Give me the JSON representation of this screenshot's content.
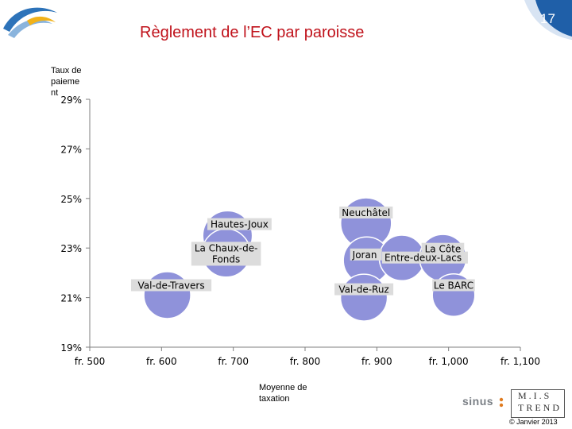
{
  "header": {
    "title": "Règlement de l’EC par paroisse",
    "page_number": "17"
  },
  "footer": {
    "brand": "sinus",
    "partner_logo_top": "M.I.S",
    "partner_logo_bottom": "TREND",
    "copyright": "© Janvier 2013"
  },
  "colors": {
    "title": "#c0121b",
    "bubble_fill": "#8f92da",
    "bubble_stroke": "#ffffff",
    "label_bg": "#dcdcdc",
    "axis": "#7f7f7f",
    "badge": "#1f5fa8"
  },
  "chart_data": {
    "type": "bubble",
    "title": "Règlement de l’EC par paroisse",
    "xlabel": "Moyenne de taxation",
    "ylabel": "Taux de paiement",
    "ylabel_lines": [
      "Taux de",
      "paieme",
      "nt"
    ],
    "xlim": [
      500,
      1100
    ],
    "ylim": [
      19,
      29
    ],
    "xticks": [
      500,
      600,
      700,
      800,
      900,
      1000,
      1100
    ],
    "xtick_labels": [
      "fr.  500",
      "fr.  600",
      "fr.  700",
      "fr.  800",
      "fr.  900",
      "fr.  1,000",
      "fr.  1,100"
    ],
    "yticks": [
      19,
      21,
      23,
      25,
      27,
      29
    ],
    "ytick_labels": [
      "19%",
      "21%",
      "23%",
      "25%",
      "27%",
      "29%"
    ],
    "grid": false,
    "series": [
      {
        "label": "Neuchâtel",
        "x": 885,
        "y": 24.0,
        "size": 1.0
      },
      {
        "label": "Hautes-Joux",
        "x": 692,
        "y": 23.5,
        "size": 0.95
      },
      {
        "label": "La Chaux-de-Fonds",
        "x": 690,
        "y": 22.8,
        "size": 0.9
      },
      {
        "label": "Joran",
        "x": 886,
        "y": 22.5,
        "size": 0.85
      },
      {
        "label": "Entre-deux-Lacs",
        "x": 935,
        "y": 22.6,
        "size": 0.8
      },
      {
        "label": "La Côte",
        "x": 992,
        "y": 22.6,
        "size": 0.85
      },
      {
        "label": "Val-de-Travers",
        "x": 608,
        "y": 21.1,
        "size": 0.85
      },
      {
        "label": "Val-de-Ruz",
        "x": 882,
        "y": 21.0,
        "size": 0.85
      },
      {
        "label": "Le BARC",
        "x": 1007,
        "y": 21.1,
        "size": 0.7
      }
    ]
  }
}
